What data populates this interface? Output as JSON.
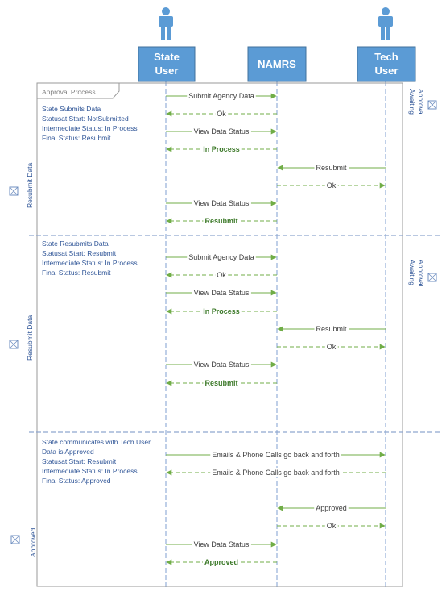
{
  "actors": [
    {
      "id": "state",
      "label_lines": [
        "State",
        "User"
      ]
    },
    {
      "id": "namrs",
      "label_lines": [
        "NAMRS"
      ]
    },
    {
      "id": "tech",
      "label_lines": [
        "Tech",
        "User"
      ]
    }
  ],
  "frame_title": "Approval Process",
  "sections": [
    {
      "side_label": "Resubmit Data",
      "right_label_lines": [
        "Awaiting",
        "Approval"
      ],
      "notes": [
        "State Submits Data",
        "Statusat Start: NotSubmitted",
        "Intermediate Status: In Process",
        "Final Status: Resubmit"
      ],
      "messages": [
        {
          "from": "state",
          "to": "namrs",
          "label": "Submit Agency Data",
          "style": "solid",
          "bold": false
        },
        {
          "from": "namrs",
          "to": "state",
          "label": "Ok",
          "style": "dashed",
          "bold": false
        },
        {
          "from": "state",
          "to": "namrs",
          "label": "View Data Status",
          "style": "solid",
          "bold": false
        },
        {
          "from": "namrs",
          "to": "state",
          "label": "In Process",
          "style": "dashed",
          "bold": true
        },
        {
          "from": "tech",
          "to": "namrs",
          "label": "Resubmit",
          "style": "solid",
          "bold": false
        },
        {
          "from": "namrs",
          "to": "tech",
          "label": "Ok",
          "style": "dashed",
          "bold": false
        },
        {
          "from": "state",
          "to": "namrs",
          "label": "View Data Status",
          "style": "solid",
          "bold": false
        },
        {
          "from": "namrs",
          "to": "state",
          "label": "Resubmit",
          "style": "dashed",
          "bold": true
        }
      ]
    },
    {
      "side_label": "Resubmit Data",
      "right_label_lines": [
        "Awaiting",
        "Approval"
      ],
      "notes": [
        "State Resubmits Data",
        "Statusat Start: Resubmit",
        "Intermediate Status: In Process",
        "Final Status: Resubmit"
      ],
      "messages": [
        {
          "from": "state",
          "to": "namrs",
          "label": "Submit Agency Data",
          "style": "solid",
          "bold": false
        },
        {
          "from": "namrs",
          "to": "state",
          "label": "Ok",
          "style": "dashed",
          "bold": false
        },
        {
          "from": "state",
          "to": "namrs",
          "label": "View Data Status",
          "style": "solid",
          "bold": false
        },
        {
          "from": "namrs",
          "to": "state",
          "label": "In Process",
          "style": "dashed",
          "bold": true
        },
        {
          "from": "tech",
          "to": "namrs",
          "label": "Resubmit",
          "style": "solid",
          "bold": false
        },
        {
          "from": "namrs",
          "to": "tech",
          "label": "Ok",
          "style": "dashed",
          "bold": false
        },
        {
          "from": "state",
          "to": "namrs",
          "label": "View Data Status",
          "style": "solid",
          "bold": false
        },
        {
          "from": "namrs",
          "to": "state",
          "label": "Resubmit",
          "style": "dashed",
          "bold": true
        }
      ]
    },
    {
      "side_label": "Approved",
      "right_label_lines": [],
      "notes": [
        "State communicates with Tech User",
        "Data is Approved",
        "Statusat Start: Resubmit",
        "Intermediate Status: In Process",
        "Final Status: Approved"
      ],
      "messages": [
        {
          "from": "state",
          "to": "tech",
          "label": "Emails & Phone Calls go back and forth",
          "style": "solid",
          "bold": false
        },
        {
          "from": "tech",
          "to": "state",
          "label": "Emails & Phone Calls go back and forth",
          "style": "dashed",
          "bold": false
        },
        {
          "from": "tech",
          "to": "namrs",
          "label": "Approved",
          "style": "solid",
          "bold": false
        },
        {
          "from": "namrs",
          "to": "tech",
          "label": "Ok",
          "style": "dashed",
          "bold": false
        },
        {
          "from": "state",
          "to": "namrs",
          "label": "View Data Status",
          "style": "solid",
          "bold": false
        },
        {
          "from": "namrs",
          "to": "state",
          "label": "Approved",
          "style": "dashed",
          "bold": true
        }
      ]
    }
  ],
  "colors": {
    "actor": "#5b9bd5",
    "message": "#70ad47",
    "note": "#2f5597"
  }
}
